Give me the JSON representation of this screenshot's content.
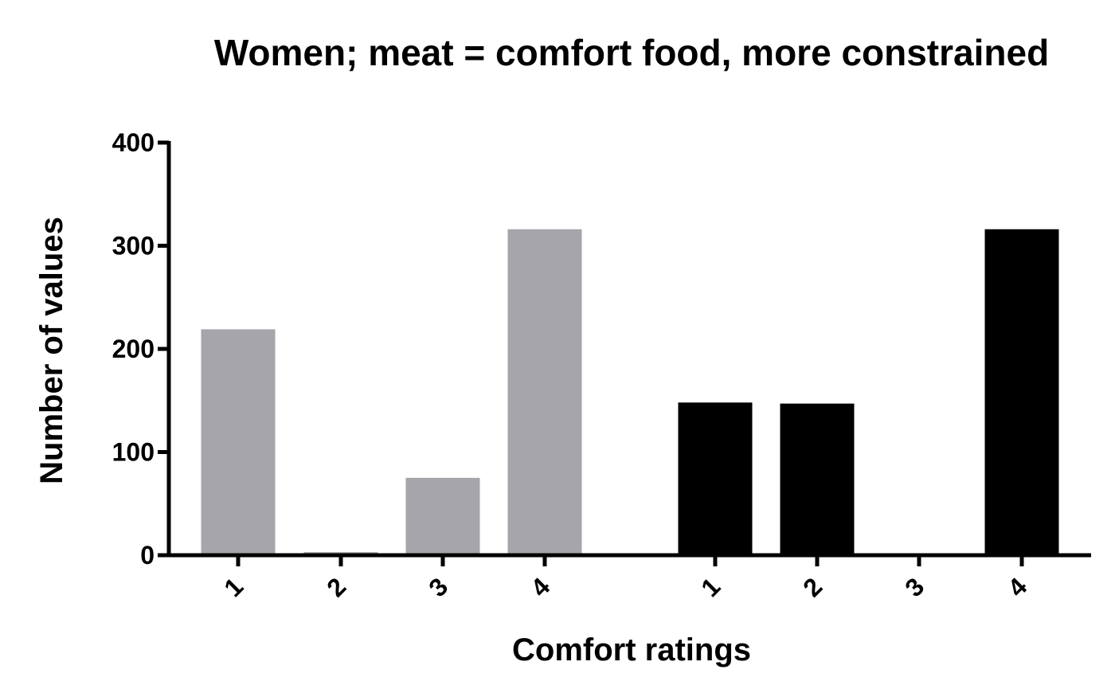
{
  "chart_data": {
    "type": "bar",
    "title": "Women; meat = comfort food, more constrained",
    "xlabel": "Comfort ratings",
    "ylabel": "Number of values",
    "ylim": [
      0,
      400
    ],
    "yticks": [
      "0",
      "100",
      "200",
      "300",
      "400"
    ],
    "groups": [
      {
        "color": "#a6a5aa",
        "categories": [
          "1",
          "2",
          "3",
          "4"
        ],
        "values": [
          219,
          3,
          75,
          316
        ]
      },
      {
        "color": "#000000",
        "categories": [
          "1",
          "2",
          "3",
          "4"
        ],
        "values": [
          148,
          147,
          0,
          316
        ]
      }
    ],
    "grid": false,
    "legend": "none"
  }
}
